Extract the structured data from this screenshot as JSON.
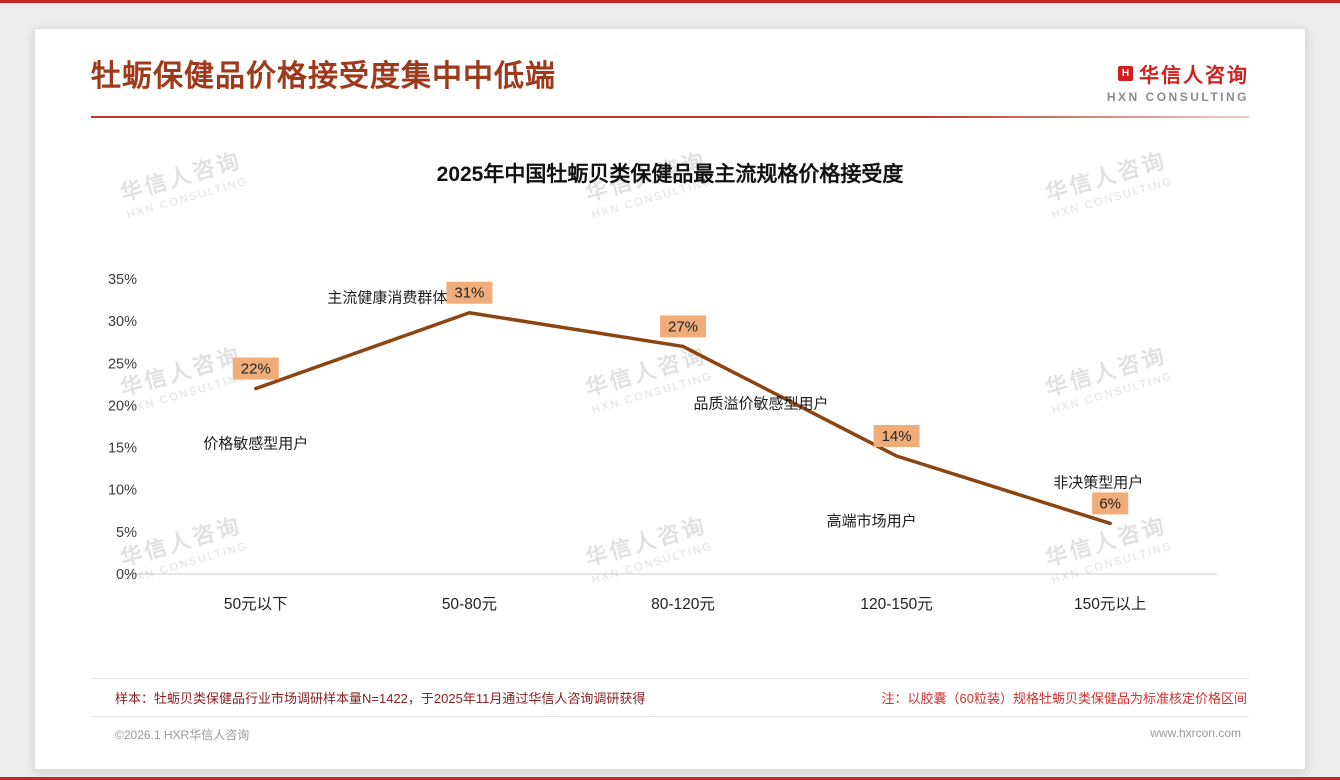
{
  "header": {
    "title": "牡蛎保健品价格接受度集中中低端",
    "logo": {
      "name": "华信人咨询",
      "subtitle": "HXN CONSULTING",
      "icon_letter": "H"
    }
  },
  "chart_data": {
    "type": "line",
    "title": "2025年中国牡蛎贝类保健品最主流规格价格接受度",
    "categories": [
      "50元以下",
      "50-80元",
      "80-120元",
      "120-150元",
      "150元以上"
    ],
    "values": [
      22,
      31,
      27,
      14,
      6
    ],
    "data_labels": [
      "22%",
      "31%",
      "27%",
      "14%",
      "6%"
    ],
    "point_annotations": [
      "价格敏感型用户",
      "主流健康消费群体",
      "品质溢价敏感型用户",
      "高端市场用户",
      "非决策型用户"
    ],
    "xlabel": "",
    "ylabel": "",
    "ylim": [
      0,
      35
    ],
    "yticks": [
      0,
      5,
      10,
      15,
      20,
      25,
      30,
      35
    ],
    "ytick_labels": [
      "0%",
      "5%",
      "10%",
      "15%",
      "20%",
      "25%",
      "30%",
      "35%"
    ],
    "grid": false,
    "legend": false,
    "line_color": "#8B4513",
    "label_bg": "#F0AD79"
  },
  "watermark": {
    "line1": "华信人咨询",
    "line2": "HXN CONSULTING"
  },
  "footer": {
    "sample_note": "样本：牡蛎贝类保健品行业市场调研样本量N=1422，于2025年11月通过华信人咨询调研获得",
    "price_note": "注：以胶囊（60粒装）规格牡蛎贝类保健品为标准核定价格区间",
    "copyright": "©2026.1 HXR华信人咨询",
    "website": "www.hxrcon.com"
  },
  "colors": {
    "accent_red": "#c62828",
    "title_brown": "#9e3a1c",
    "note_dark_red": "#8b2020",
    "note_bright_red": "#d03030"
  }
}
